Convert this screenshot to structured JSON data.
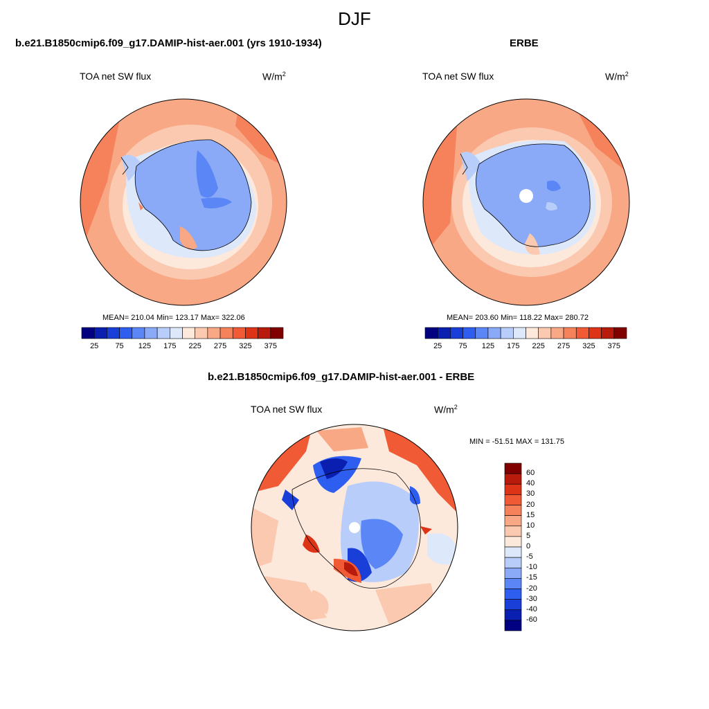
{
  "figure": {
    "title": "DJF"
  },
  "panels": [
    {
      "title": "b.e21.B1850cmip6.f09_g17.DAMIP-hist-aer.001 (yrs 1910-1934)",
      "variable": "TOA net SW flux",
      "units_base": "W/m",
      "units_exp": "2",
      "stats": "MEAN= 210.04  Min= 123.17  Max= 322.06"
    },
    {
      "title": "ERBE",
      "variable": "TOA net SW flux",
      "units_base": "W/m",
      "units_exp": "2",
      "stats": "MEAN= 203.60  Min= 118.22  Max= 280.72"
    },
    {
      "title": "b.e21.B1850cmip6.f09_g17.DAMIP-hist-aer.001 - ERBE",
      "variable": "TOA net SW flux",
      "units_base": "W/m",
      "units_exp": "2",
      "stats": "MIN = -51.51 MAX = 131.75"
    }
  ],
  "colorbar_abs": {
    "labels": [
      "25",
      "75",
      "125",
      "175",
      "225",
      "275",
      "325",
      "375"
    ],
    "colors": [
      "#000080",
      "#0a1fb0",
      "#1a3ed8",
      "#2e5ef0",
      "#5b86f5",
      "#8aaaf7",
      "#b8cdf9",
      "#dde8fb",
      "#fde8dc",
      "#fbc9b0",
      "#f9a886",
      "#f6825c",
      "#f05a34",
      "#dd3418",
      "#b81a0c",
      "#800000"
    ]
  },
  "colorbar_diff": {
    "labels": [
      "60",
      "40",
      "30",
      "20",
      "15",
      "10",
      "5",
      "0",
      "-5",
      "-10",
      "-15",
      "-20",
      "-30",
      "-40",
      "-60"
    ],
    "colors": [
      "#800000",
      "#b81a0c",
      "#dd3418",
      "#f05a34",
      "#f6825c",
      "#f9a886",
      "#fbc9b0",
      "#fde8dc",
      "#dde8fb",
      "#b8cdf9",
      "#8aaaf7",
      "#5b86f5",
      "#2e5ef0",
      "#1a3ed8",
      "#0a1fb0",
      "#000080"
    ]
  }
}
